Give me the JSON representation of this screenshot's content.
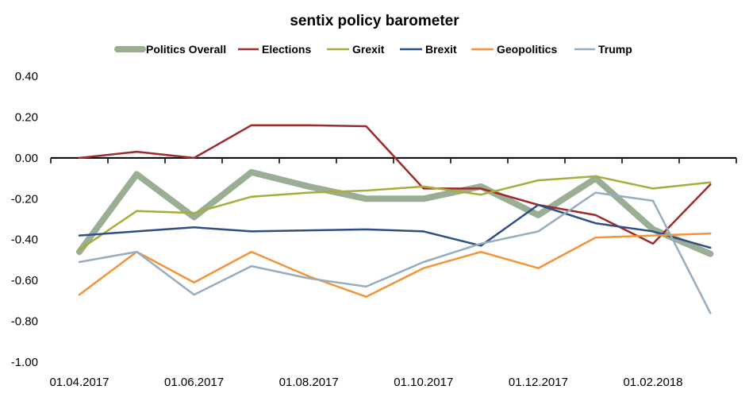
{
  "chart_data": {
    "type": "line",
    "title": "sentix policy barometer",
    "xlabel": "",
    "ylabel": "",
    "ylim": [
      -1.0,
      0.4
    ],
    "ytick_step": 0.2,
    "grid": false,
    "legend_position": "top",
    "x": [
      "01.04.2017",
      "01.05.2017",
      "01.06.2017",
      "01.07.2017",
      "01.08.2017",
      "01.09.2017",
      "01.10.2017",
      "01.11.2017",
      "01.12.2017",
      "01.01.2018",
      "01.02.2018",
      "01.03.2018"
    ],
    "x_tick_labels": [
      "01.04.2017",
      "01.06.2017",
      "01.08.2017",
      "01.10.2017",
      "01.12.2017",
      "01.02.2018"
    ],
    "y_tick_labels": [
      "0.40",
      "0.20",
      "0.00",
      "-0.20",
      "-0.40",
      "-0.60",
      "-0.80",
      "-1.00"
    ],
    "series": [
      {
        "name": "Politics Overall",
        "color": "#9aae94",
        "values": [
          -0.46,
          -0.08,
          -0.29,
          -0.07,
          -0.14,
          -0.2,
          -0.2,
          -0.14,
          -0.28,
          -0.1,
          -0.35,
          -0.47
        ]
      },
      {
        "name": "Elections",
        "color": "#9e2a2b",
        "values": [
          0.0,
          0.03,
          0.0,
          0.16,
          0.16,
          0.155,
          -0.15,
          -0.15,
          -0.23,
          -0.28,
          -0.42,
          -0.13
        ]
      },
      {
        "name": "Grexit",
        "color": "#a7ad3c",
        "values": [
          -0.45,
          -0.26,
          -0.27,
          -0.19,
          -0.17,
          -0.16,
          -0.14,
          -0.18,
          -0.11,
          -0.09,
          -0.15,
          -0.12
        ]
      },
      {
        "name": "Brexit",
        "color": "#2d4e86",
        "values": [
          -0.38,
          -0.36,
          -0.34,
          -0.36,
          -0.355,
          -0.35,
          -0.36,
          -0.43,
          -0.23,
          -0.32,
          -0.36,
          -0.44
        ]
      },
      {
        "name": "Geopolitics",
        "color": "#f29437",
        "values": [
          -0.67,
          -0.46,
          -0.61,
          -0.46,
          -0.58,
          -0.68,
          -0.54,
          -0.46,
          -0.54,
          -0.39,
          -0.38,
          -0.37
        ]
      },
      {
        "name": "Trump",
        "color": "#96adc0",
        "values": [
          -0.51,
          -0.46,
          -0.67,
          -0.53,
          -0.59,
          -0.63,
          -0.51,
          -0.42,
          -0.36,
          -0.17,
          -0.21,
          -0.76
        ]
      }
    ]
  }
}
